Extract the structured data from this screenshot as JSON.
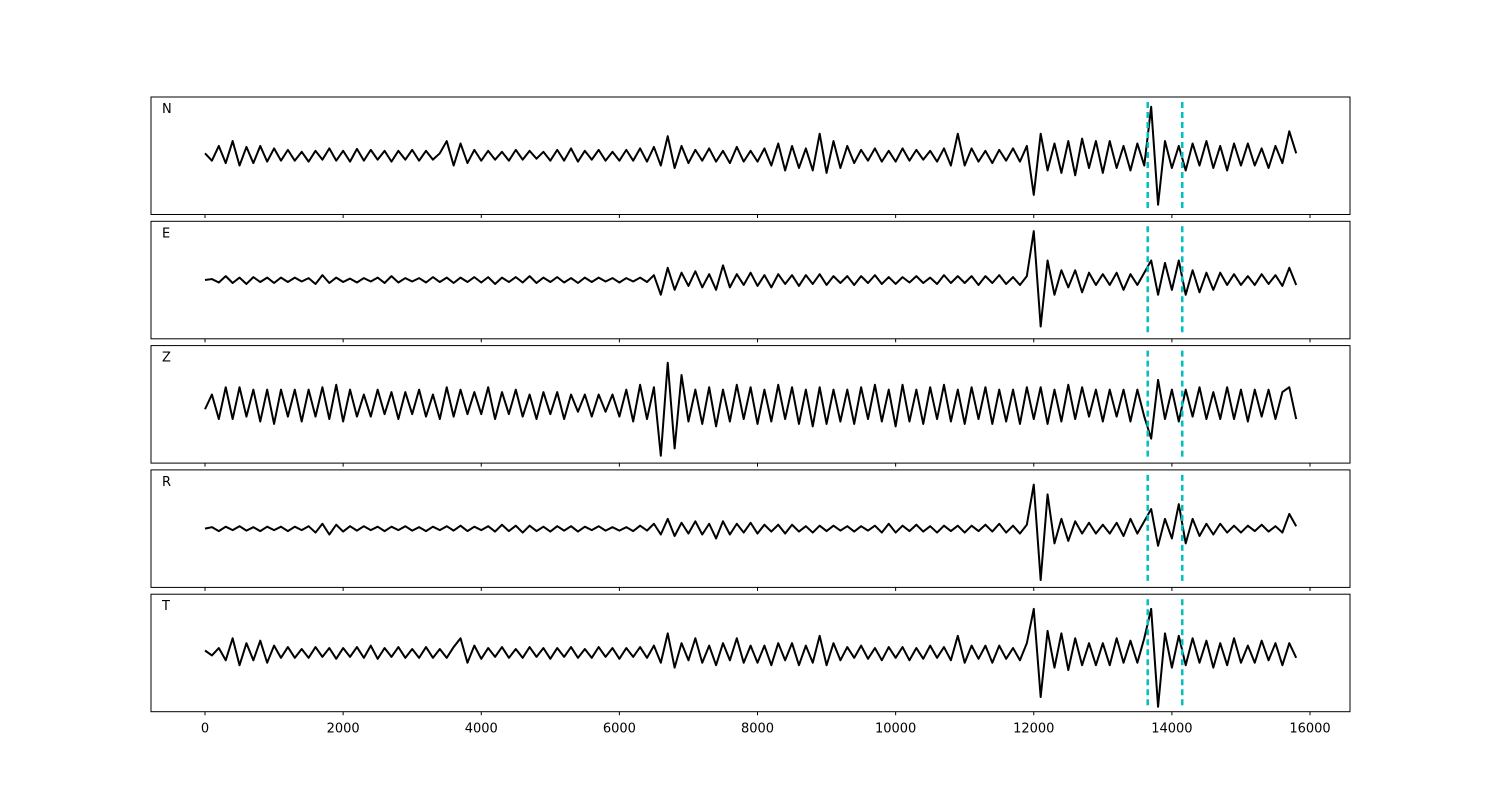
{
  "chart_data": {
    "type": "line",
    "stacked_panels": true,
    "x": [
      0,
      100,
      200,
      300,
      400,
      500,
      600,
      700,
      800,
      900,
      1000,
      1100,
      1200,
      1300,
      1400,
      1500,
      1600,
      1700,
      1800,
      1900,
      2000,
      2100,
      2200,
      2300,
      2400,
      2500,
      2600,
      2700,
      2800,
      2900,
      3000,
      3100,
      3200,
      3300,
      3400,
      3500,
      3600,
      3700,
      3800,
      3900,
      4000,
      4100,
      4200,
      4300,
      4400,
      4500,
      4600,
      4700,
      4800,
      4900,
      5000,
      5100,
      5200,
      5300,
      5400,
      5500,
      5600,
      5700,
      5800,
      5900,
      6000,
      6100,
      6200,
      6300,
      6400,
      6500,
      6600,
      6700,
      6800,
      6900,
      7000,
      7100,
      7200,
      7300,
      7400,
      7500,
      7600,
      7700,
      7800,
      7900,
      8000,
      8100,
      8200,
      8300,
      8400,
      8500,
      8600,
      8700,
      8800,
      8900,
      9000,
      9100,
      9200,
      9300,
      9400,
      9500,
      9600,
      9700,
      9800,
      9900,
      10000,
      10100,
      10200,
      10300,
      10400,
      10500,
      10600,
      10700,
      10800,
      10900,
      11000,
      11100,
      11200,
      11300,
      11400,
      11500,
      11600,
      11700,
      11800,
      11900,
      12000,
      12100,
      12200,
      12300,
      12400,
      12500,
      12600,
      12700,
      12800,
      12900,
      13000,
      13100,
      13200,
      13300,
      13400,
      13500,
      13600,
      13700,
      13800,
      13900,
      14000,
      14100,
      14200,
      14300,
      14400,
      14500,
      14600,
      14700,
      14800,
      14900,
      15000,
      15100,
      15200,
      15300,
      15400,
      15500,
      15600,
      15700,
      15800
    ],
    "xlim": [
      -782,
      16579
    ],
    "xticks": [
      0,
      2000,
      4000,
      6000,
      8000,
      10000,
      12000,
      14000,
      16000
    ],
    "ylim": [
      -1.2,
      1.2
    ],
    "vlines": [
      13650,
      14150
    ],
    "vline_color": "#00bfbf",
    "series": [
      {
        "name": "N",
        "color": "#000000",
        "values": [
          0.05,
          -0.1,
          0.2,
          -0.15,
          0.3,
          -0.2,
          0.18,
          -0.15,
          0.2,
          -0.12,
          0.15,
          -0.1,
          0.12,
          -0.1,
          0.08,
          -0.12,
          0.1,
          -0.08,
          0.15,
          -0.1,
          0.1,
          -0.12,
          0.14,
          -0.1,
          0.12,
          -0.08,
          0.1,
          -0.12,
          0.1,
          -0.08,
          0.12,
          -0.1,
          0.1,
          -0.08,
          0.05,
          0.3,
          -0.2,
          0.25,
          -0.15,
          0.12,
          -0.1,
          0.1,
          -0.08,
          0.08,
          -0.1,
          0.12,
          -0.08,
          0.1,
          -0.06,
          0.08,
          -0.1,
          0.12,
          -0.1,
          0.15,
          -0.12,
          0.1,
          -0.08,
          0.12,
          -0.1,
          0.08,
          -0.1,
          0.12,
          -0.1,
          0.15,
          -0.12,
          0.18,
          -0.2,
          0.4,
          -0.25,
          0.2,
          -0.15,
          0.12,
          -0.1,
          0.15,
          -0.12,
          0.1,
          -0.15,
          0.18,
          -0.12,
          0.1,
          -0.12,
          0.15,
          -0.2,
          0.25,
          -0.3,
          0.2,
          -0.25,
          0.15,
          -0.3,
          0.45,
          -0.35,
          0.3,
          -0.25,
          0.2,
          -0.15,
          0.12,
          -0.1,
          0.15,
          -0.12,
          0.1,
          -0.12,
          0.15,
          -0.1,
          0.12,
          -0.08,
          0.1,
          -0.12,
          0.15,
          -0.2,
          0.45,
          -0.2,
          0.15,
          -0.12,
          0.1,
          -0.15,
          0.12,
          -0.1,
          0.15,
          -0.12,
          0.2,
          -0.8,
          0.45,
          -0.3,
          0.25,
          -0.35,
          0.3,
          -0.4,
          0.35,
          -0.25,
          0.3,
          -0.35,
          0.3,
          -0.25,
          0.2,
          -0.3,
          0.25,
          -0.2,
          1.0,
          -1.0,
          0.3,
          -0.25,
          0.2,
          -0.3,
          0.25,
          -0.2,
          0.3,
          -0.25,
          0.2,
          -0.3,
          0.25,
          -0.2,
          0.25,
          -0.2,
          0.15,
          -0.25,
          0.2,
          -0.15,
          0.5,
          0.05
        ]
      },
      {
        "name": "E",
        "color": "#000000",
        "values": [
          0,
          0.02,
          -0.05,
          0.08,
          -0.06,
          0.05,
          -0.08,
          0.06,
          -0.04,
          0.05,
          -0.06,
          0.05,
          -0.04,
          0.05,
          -0.03,
          0.04,
          -0.08,
          0.1,
          -0.06,
          0.05,
          -0.04,
          0.03,
          -0.05,
          0.04,
          -0.03,
          0.05,
          -0.06,
          0.08,
          -0.05,
          0.04,
          -0.03,
          0.04,
          -0.05,
          0.06,
          -0.04,
          0.05,
          -0.06,
          0.05,
          -0.04,
          0.06,
          -0.05,
          0.06,
          -0.08,
          0.05,
          -0.04,
          0.06,
          -0.05,
          0.08,
          -0.06,
          0.05,
          -0.04,
          0.06,
          -0.05,
          0.04,
          -0.06,
          0.05,
          -0.04,
          0.05,
          -0.03,
          0.04,
          -0.05,
          0.04,
          -0.03,
          0.05,
          -0.04,
          0.1,
          -0.3,
          0.25,
          -0.2,
          0.15,
          -0.12,
          0.18,
          -0.15,
          0.12,
          -0.2,
          0.3,
          -0.15,
          0.12,
          -0.1,
          0.15,
          -0.12,
          0.1,
          -0.15,
          0.12,
          -0.08,
          0.1,
          -0.12,
          0.1,
          -0.08,
          0.12,
          -0.1,
          0.08,
          -0.06,
          0.08,
          -0.1,
          0.08,
          -0.06,
          0.1,
          -0.08,
          0.06,
          -0.08,
          0.06,
          -0.05,
          0.08,
          -0.06,
          0.05,
          -0.08,
          0.1,
          -0.06,
          0.08,
          -0.06,
          0.08,
          -0.1,
          0.08,
          -0.06,
          0.1,
          -0.08,
          0.06,
          -0.1,
          0.08,
          1.0,
          -0.95,
          0.4,
          -0.3,
          0.2,
          -0.15,
          0.2,
          -0.25,
          0.15,
          -0.1,
          0.12,
          -0.1,
          0.15,
          -0.2,
          0.12,
          -0.1,
          0.15,
          0.4,
          -0.3,
          0.35,
          -0.2,
          0.4,
          -0.3,
          0.2,
          -0.25,
          0.15,
          -0.2,
          0.15,
          -0.1,
          0.12,
          -0.1,
          0.08,
          -0.1,
          0.12,
          -0.08,
          0.1,
          -0.12,
          0.25,
          -0.1
        ]
      },
      {
        "name": "Z",
        "color": "#000000",
        "values": [
          -0.1,
          0.2,
          -0.3,
          0.35,
          -0.3,
          0.35,
          -0.25,
          0.3,
          -0.35,
          0.3,
          -0.4,
          0.3,
          -0.25,
          0.3,
          -0.35,
          0.3,
          -0.25,
          0.35,
          -0.3,
          0.4,
          -0.35,
          0.3,
          -0.25,
          0.2,
          -0.25,
          0.3,
          -0.2,
          0.25,
          -0.3,
          0.25,
          -0.2,
          0.3,
          -0.25,
          0.2,
          -0.3,
          0.35,
          -0.25,
          0.3,
          -0.2,
          0.25,
          -0.2,
          0.35,
          -0.3,
          0.25,
          -0.2,
          0.3,
          -0.25,
          0.2,
          -0.3,
          0.25,
          -0.2,
          0.25,
          -0.3,
          0.2,
          -0.15,
          0.2,
          -0.25,
          0.2,
          -0.15,
          0.2,
          -0.25,
          0.3,
          -0.35,
          0.4,
          -0.3,
          0.35,
          -1.05,
          0.85,
          -0.9,
          0.6,
          -0.35,
          0.3,
          -0.4,
          0.35,
          -0.45,
          0.3,
          -0.35,
          0.4,
          -0.3,
          0.35,
          -0.4,
          0.3,
          -0.35,
          0.4,
          -0.3,
          0.35,
          -0.4,
          0.3,
          -0.45,
          0.35,
          -0.4,
          0.3,
          -0.35,
          0.3,
          -0.4,
          0.35,
          -0.3,
          0.4,
          -0.35,
          0.3,
          -0.45,
          0.4,
          -0.35,
          0.3,
          -0.4,
          0.35,
          -0.3,
          0.4,
          -0.35,
          0.3,
          -0.4,
          0.35,
          -0.3,
          0.35,
          -0.4,
          0.3,
          -0.35,
          0.3,
          -0.4,
          0.35,
          -0.3,
          0.35,
          -0.4,
          0.3,
          -0.35,
          0.4,
          -0.3,
          0.35,
          -0.25,
          0.3,
          -0.35,
          0.3,
          -0.25,
          0.3,
          -0.35,
          0.3,
          -0.25,
          -0.7,
          0.5,
          -0.3,
          0.3,
          -0.35,
          0.3,
          -0.25,
          0.35,
          -0.3,
          0.25,
          -0.3,
          0.35,
          -0.3,
          0.3,
          -0.35,
          0.3,
          -0.25,
          0.3,
          -0.3,
          0.25,
          0.35,
          -0.3
        ]
      },
      {
        "name": "R",
        "color": "#000000",
        "values": [
          0,
          0.03,
          -0.05,
          0.04,
          -0.03,
          0.05,
          -0.04,
          0.03,
          -0.05,
          0.04,
          -0.03,
          0.04,
          -0.05,
          0.04,
          -0.03,
          0.05,
          -0.08,
          0.1,
          -0.12,
          0.08,
          -0.06,
          0.05,
          -0.04,
          0.05,
          -0.03,
          0.04,
          -0.05,
          0.04,
          -0.03,
          0.05,
          -0.04,
          0.03,
          -0.05,
          0.04,
          -0.03,
          0.05,
          -0.04,
          0.06,
          -0.05,
          0.04,
          -0.03,
          0.05,
          -0.06,
          0.08,
          -0.05,
          0.06,
          -0.08,
          0.06,
          -0.05,
          0.04,
          -0.06,
          0.05,
          -0.04,
          0.05,
          -0.06,
          0.04,
          -0.03,
          0.05,
          -0.04,
          0.03,
          -0.04,
          0.03,
          -0.05,
          0.06,
          -0.04,
          0.1,
          -0.12,
          0.2,
          -0.15,
          0.12,
          -0.1,
          0.15,
          -0.12,
          0.1,
          -0.2,
          0.15,
          -0.12,
          0.1,
          -0.08,
          0.12,
          -0.1,
          0.08,
          -0.06,
          0.08,
          -0.1,
          0.08,
          -0.06,
          0.05,
          -0.08,
          0.06,
          -0.05,
          0.06,
          -0.04,
          0.05,
          -0.06,
          0.05,
          -0.04,
          0.06,
          -0.08,
          0.1,
          -0.08,
          0.06,
          -0.05,
          0.08,
          -0.06,
          0.05,
          -0.08,
          0.06,
          -0.05,
          0.06,
          -0.08,
          0.06,
          -0.05,
          0.08,
          -0.06,
          0.1,
          -0.08,
          0.06,
          -0.1,
          0.08,
          0.9,
          -1.05,
          0.7,
          -0.3,
          0.2,
          -0.25,
          0.15,
          -0.1,
          0.12,
          -0.1,
          0.08,
          -0.1,
          0.12,
          -0.15,
          0.2,
          -0.1,
          0.15,
          0.4,
          -0.35,
          0.2,
          -0.2,
          0.5,
          -0.3,
          0.2,
          -0.15,
          0.1,
          -0.12,
          0.1,
          -0.08,
          0.06,
          -0.08,
          0.06,
          -0.05,
          0.08,
          -0.06,
          0.05,
          -0.08,
          0.3,
          0.05
        ]
      },
      {
        "name": "T",
        "color": "#000000",
        "values": [
          0.05,
          -0.05,
          0.1,
          -0.15,
          0.3,
          -0.25,
          0.2,
          -0.15,
          0.25,
          -0.2,
          0.15,
          -0.1,
          0.12,
          -0.1,
          0.08,
          -0.1,
          0.12,
          -0.08,
          0.1,
          -0.12,
          0.1,
          -0.08,
          0.12,
          -0.1,
          0.15,
          -0.12,
          0.1,
          -0.08,
          0.12,
          -0.1,
          0.08,
          -0.1,
          0.12,
          -0.1,
          0.08,
          -0.1,
          0.12,
          0.3,
          -0.2,
          0.15,
          -0.12,
          0.1,
          -0.08,
          0.12,
          -0.1,
          0.08,
          -0.1,
          0.12,
          -0.08,
          0.1,
          -0.12,
          0.1,
          -0.08,
          0.12,
          -0.1,
          0.08,
          -0.1,
          0.12,
          -0.08,
          0.1,
          -0.12,
          0.1,
          -0.08,
          0.12,
          -0.1,
          0.15,
          -0.2,
          0.4,
          -0.3,
          0.2,
          -0.15,
          0.3,
          -0.2,
          0.15,
          -0.25,
          0.2,
          -0.15,
          0.3,
          -0.2,
          0.15,
          -0.2,
          0.15,
          -0.25,
          0.2,
          -0.15,
          0.2,
          -0.25,
          0.15,
          -0.2,
          0.35,
          -0.25,
          0.2,
          -0.15,
          0.12,
          -0.1,
          0.15,
          -0.12,
          0.1,
          -0.15,
          0.12,
          -0.1,
          0.12,
          -0.15,
          0.1,
          -0.12,
          0.15,
          -0.1,
          0.12,
          -0.15,
          0.35,
          -0.2,
          0.15,
          -0.12,
          0.15,
          -0.2,
          0.15,
          -0.12,
          0.1,
          -0.15,
          0.2,
          0.9,
          -0.9,
          0.45,
          -0.3,
          0.4,
          -0.35,
          0.3,
          -0.25,
          0.2,
          -0.25,
          0.2,
          -0.25,
          0.3,
          -0.2,
          0.25,
          -0.2,
          0.3,
          0.9,
          -1.1,
          0.4,
          -0.3,
          0.35,
          -0.25,
          0.3,
          -0.2,
          0.25,
          -0.3,
          0.2,
          -0.25,
          0.3,
          -0.2,
          0.15,
          -0.2,
          0.25,
          -0.15,
          0.2,
          -0.25,
          0.2,
          -0.1
        ]
      }
    ]
  }
}
